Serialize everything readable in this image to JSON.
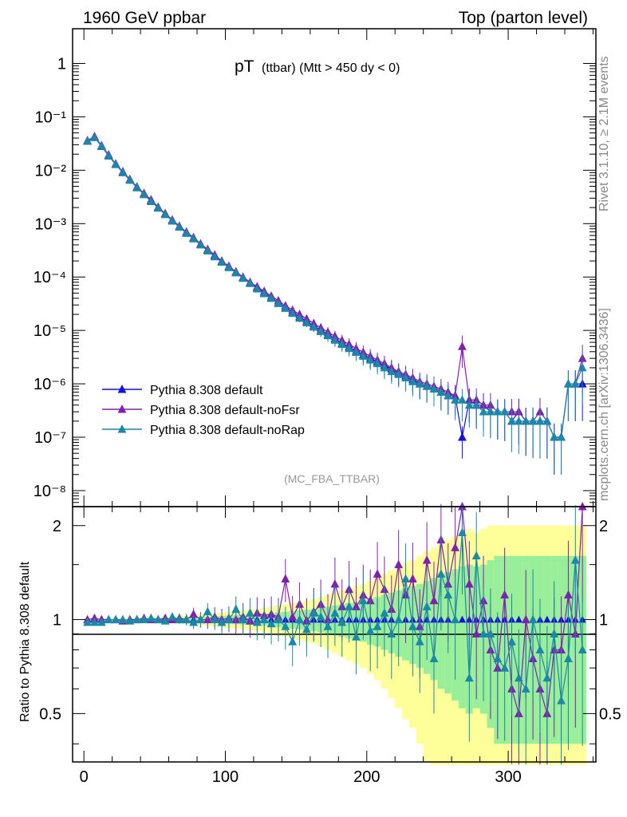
{
  "header": {
    "left": "1960 GeV ppbar",
    "right": "Top (parton level)"
  },
  "side_labels": {
    "rivet": "Rivet 3.1.10, ≥ 2.1M events",
    "mcplots": "mcplots.cern.ch [arXiv:1306.3436]"
  },
  "colors": {
    "default": "#1010e0",
    "noFsr": "#8020b0",
    "noRap": "#1a88a8",
    "band_yellow": "#ffff99",
    "band_green": "#99ee99"
  },
  "chart_data": [
    {
      "type": "line",
      "title": "pT",
      "title_sub": "(ttbar) (Mtt > 450 dy < 0)",
      "watermark": "(MC_FBA_TTBAR)",
      "xlim": [
        -8,
        362
      ],
      "ylim_log10": [
        -8.3,
        0.65
      ],
      "yscale": "log",
      "y_tick_labels": [
        "1",
        "10⁻¹",
        "10⁻²",
        "10⁻³",
        "10⁻⁴",
        "10⁻⁵",
        "10⁻⁶",
        "10⁻⁷",
        "10⁻⁸"
      ],
      "legend": [
        {
          "name": "Pythia 8.308 default",
          "color": "#1010e0"
        },
        {
          "name": "Pythia 8.308 default-noFsr",
          "color": "#8020b0"
        },
        {
          "name": "Pythia 8.308 default-noRap",
          "color": "#1a88a8"
        }
      ],
      "x": [
        2.5,
        7.5,
        12.5,
        17.5,
        22.5,
        27.5,
        32.5,
        37.5,
        42.5,
        47.5,
        52.5,
        57.5,
        62.5,
        67.5,
        72.5,
        77.5,
        82.5,
        87.5,
        92.5,
        97.5,
        102.5,
        107.5,
        112.5,
        117.5,
        122.5,
        127.5,
        132.5,
        137.5,
        142.5,
        147.5,
        152.5,
        157.5,
        162.5,
        167.5,
        172.5,
        177.5,
        182.5,
        187.5,
        192.5,
        197.5,
        202.5,
        207.5,
        212.5,
        217.5,
        222.5,
        227.5,
        232.5,
        237.5,
        242.5,
        247.5,
        252.5,
        257.5,
        262.5,
        267.5,
        272.5,
        277.5,
        282.5,
        287.5,
        292.5,
        297.5,
        302.5,
        307.5,
        312.5,
        317.5,
        322.5,
        327.5,
        332.5,
        337.5,
        342.5,
        347.5,
        352.5
      ],
      "series": [
        {
          "name": "Pythia 8.308 default",
          "values": [
            0.035,
            0.042,
            0.028,
            0.019,
            0.013,
            0.0092,
            0.0066,
            0.0048,
            0.0036,
            0.0027,
            0.002,
            0.0015,
            0.00115,
            0.00088,
            0.00068,
            0.00053,
            0.00041,
            0.00032,
            0.00025,
            0.000195,
            0.000155,
            0.000122,
            9.7e-05,
            7.8e-05,
            6.3e-05,
            5.1e-05,
            4.1e-05,
            3.3e-05,
            2.7e-05,
            2.2e-05,
            1.8e-05,
            1.48e-05,
            1.22e-05,
            1.01e-05,
            8.4e-06,
            7e-06,
            5.8e-06,
            4.9e-06,
            4.1e-06,
            3.5e-06,
            3e-06,
            2.6e-06,
            2.2e-06,
            1.9e-06,
            1.6e-06,
            1.4e-06,
            1.2e-06,
            1e-06,
            9e-07,
            8e-07,
            7e-07,
            6e-07,
            6e-07,
            1e-07,
            5e-07,
            4e-07,
            4e-07,
            3e-07,
            3e-07,
            3e-07,
            2e-07,
            3e-07,
            2e-07,
            2e-07,
            2e-07,
            2e-07,
            1e-07,
            1e-07,
            1e-06,
            1e-06,
            1e-06
          ]
        },
        {
          "name": "Pythia 8.308 default-noFsr",
          "values": [
            0.036,
            0.043,
            0.029,
            0.0195,
            0.0132,
            0.0094,
            0.0068,
            0.0049,
            0.0037,
            0.0028,
            0.00205,
            0.00155,
            0.00118,
            0.0009,
            0.0007,
            0.00055,
            0.00042,
            0.00033,
            0.00026,
            0.0002,
            0.00016,
            0.000126,
            0.0001,
            8e-05,
            6.6e-05,
            5.4e-05,
            4.4e-05,
            3.6e-05,
            2.9e-05,
            2.4e-05,
            2e-05,
            1.65e-05,
            1.35e-05,
            1.12e-05,
            9.3e-06,
            7.8e-06,
            6.5e-06,
            5.5e-06,
            4.6e-06,
            3.9e-06,
            3.3e-06,
            2.8e-06,
            2.4e-06,
            2e-06,
            1.7e-06,
            1.5e-06,
            1.3e-06,
            1.1e-06,
            1e-06,
            9e-07,
            8e-07,
            7e-07,
            6e-07,
            5e-06,
            5e-07,
            5e-07,
            4e-07,
            4e-07,
            3e-07,
            3e-07,
            3e-07,
            3e-07,
            2e-07,
            2e-07,
            3e-07,
            2e-07,
            1e-07,
            1e-07,
            1e-06,
            1e-06,
            3e-06
          ]
        },
        {
          "name": "Pythia 8.308 default-noRap",
          "values": [
            0.035,
            0.041,
            0.028,
            0.0185,
            0.0128,
            0.009,
            0.0065,
            0.0047,
            0.0035,
            0.0026,
            0.00196,
            0.00148,
            0.00112,
            0.00086,
            0.00066,
            0.00052,
            0.0004,
            0.00031,
            0.00024,
            0.00019,
            0.00015,
            0.00012,
            9.5e-05,
            7.6e-05,
            6e-05,
            4.9e-05,
            4e-05,
            3.2e-05,
            2.6e-05,
            2.1e-05,
            1.7e-05,
            1.4e-05,
            1.16e-05,
            9.6e-06,
            8e-06,
            6.6e-06,
            5.5e-06,
            4.6e-06,
            3.9e-06,
            3.3e-06,
            2.8e-06,
            2.4e-06,
            2e-06,
            1.7e-06,
            1.5e-06,
            1.3e-06,
            1.1e-06,
            1e-06,
            9e-07,
            8e-07,
            7e-07,
            6e-07,
            5e-07,
            5e-07,
            4e-07,
            4e-07,
            3e-07,
            3e-07,
            3e-07,
            3e-07,
            2e-07,
            2e-07,
            2e-07,
            2e-07,
            2e-07,
            2e-07,
            1e-07,
            1e-07,
            1e-06,
            1e-06,
            2e-06
          ]
        }
      ]
    },
    {
      "type": "line",
      "ylabel": "Ratio to Pythia 8.308 default",
      "xlim": [
        -8,
        362
      ],
      "ylim": [
        0.35,
        2.3
      ],
      "yscale": "log",
      "y_ticks": [
        0.5,
        1,
        2
      ],
      "y_tick_labels": [
        "0.5",
        "1",
        "2"
      ],
      "x_ticks": [
        0,
        100,
        200,
        300
      ],
      "x_tick_labels": [
        "0",
        "100",
        "200",
        "300"
      ],
      "band_x": [
        0,
        5,
        10,
        15,
        20,
        25,
        30,
        35,
        40,
        45,
        50,
        55,
        60,
        65,
        70,
        75,
        80,
        85,
        90,
        95,
        100,
        105,
        110,
        115,
        120,
        125,
        130,
        135,
        140,
        145,
        150,
        155,
        160,
        165,
        170,
        175,
        180,
        185,
        190,
        195,
        200,
        205,
        210,
        215,
        220,
        225,
        230,
        235,
        240,
        245,
        250,
        255,
        260,
        265,
        270,
        275,
        280,
        285,
        290,
        295,
        300,
        305,
        310,
        315,
        320,
        325,
        330,
        335,
        340,
        345,
        350,
        355
      ],
      "band_yellow_halfwidth": [
        0.01,
        0.01,
        0.01,
        0.01,
        0.01,
        0.01,
        0.015,
        0.015,
        0.015,
        0.02,
        0.02,
        0.025,
        0.025,
        0.03,
        0.03,
        0.035,
        0.04,
        0.045,
        0.05,
        0.055,
        0.06,
        0.065,
        0.07,
        0.075,
        0.08,
        0.09,
        0.1,
        0.11,
        0.12,
        0.13,
        0.14,
        0.15,
        0.16,
        0.18,
        0.2,
        0.22,
        0.24,
        0.26,
        0.28,
        0.3,
        0.33,
        0.36,
        0.4,
        0.44,
        0.48,
        0.52,
        0.55,
        0.6,
        0.65,
        0.7,
        0.75,
        0.8,
        0.85,
        0.9,
        0.95,
        0.9,
        0.95,
        1.0,
        1.0,
        1.0,
        1.0,
        1.0,
        1.0,
        1.0,
        1.0,
        1.0,
        1.0,
        1.0,
        1.0,
        1.0,
        1.0
      ],
      "band_green_halfwidth": [
        0.005,
        0.005,
        0.005,
        0.005,
        0.005,
        0.005,
        0.007,
        0.007,
        0.008,
        0.01,
        0.01,
        0.012,
        0.012,
        0.015,
        0.015,
        0.018,
        0.02,
        0.022,
        0.025,
        0.028,
        0.03,
        0.033,
        0.035,
        0.038,
        0.04,
        0.045,
        0.05,
        0.055,
        0.06,
        0.065,
        0.07,
        0.075,
        0.08,
        0.09,
        0.1,
        0.11,
        0.12,
        0.13,
        0.14,
        0.15,
        0.17,
        0.18,
        0.2,
        0.22,
        0.24,
        0.26,
        0.28,
        0.3,
        0.33,
        0.36,
        0.4,
        0.42,
        0.45,
        0.48,
        0.5,
        0.48,
        0.5,
        0.55,
        0.6,
        0.6,
        0.6,
        0.6,
        0.6,
        0.6,
        0.6,
        0.6,
        0.6,
        0.6,
        0.6,
        0.6,
        0.6
      ],
      "series": [
        {
          "name": "Pythia 8.308 default-noFsr",
          "values": [
            1.0,
            1.01,
            1.0,
            1.0,
            1.0,
            0.99,
            1.0,
            1.0,
            1.01,
            1.0,
            1.0,
            1.01,
            1.0,
            1.01,
            1.0,
            1.04,
            1.0,
            1.0,
            1.02,
            1.0,
            1.01,
            1.0,
            1.02,
            0.99,
            1.05,
            1.03,
            1.04,
            1.02,
            1.35,
            1.02,
            1.12,
            0.99,
            1.06,
            1.12,
            1.0,
            1.3,
            1.1,
            1.25,
            1.1,
            1.2,
            1.15,
            1.4,
            1.25,
            1.08,
            1.5,
            1.2,
            1.35,
            0.95,
            1.55,
            1.15,
            1.8,
            1.3,
            1.7,
            2.3,
            1.3,
            0.9,
            1.15,
            0.8,
            0.7,
            1.2,
            0.6,
            0.5,
            1.0,
            0.75,
            0.6,
            0.5,
            0.8,
            0.8,
            1.2,
            0.9,
            2.3
          ]
        },
        {
          "name": "Pythia 8.308 default-noRap",
          "values": [
            0.98,
            0.98,
            0.98,
            1.0,
            1.0,
            1.0,
            0.99,
            1.0,
            1.0,
            1.01,
            1.0,
            0.99,
            1.02,
            1.0,
            1.0,
            0.98,
            1.0,
            1.06,
            1.0,
            0.98,
            1.0,
            1.08,
            1.0,
            1.05,
            0.98,
            1.0,
            0.97,
            1.0,
            0.95,
            0.85,
            1.0,
            0.93,
            1.05,
            1.02,
            0.95,
            1.05,
            0.98,
            1.1,
            0.88,
            1.15,
            0.92,
            0.95,
            1.05,
            0.9,
            1.0,
            1.35,
            0.95,
            0.85,
            1.1,
            0.75,
            1.4,
            1.2,
            1.0,
            1.9,
            0.65,
            1.6,
            0.9,
            0.9,
            0.75,
            0.7,
            0.85,
            0.65,
            0.6,
            1.0,
            0.8,
            0.65,
            0.9,
            0.55,
            0.75,
            1.55,
            0.8
          ]
        }
      ]
    }
  ]
}
